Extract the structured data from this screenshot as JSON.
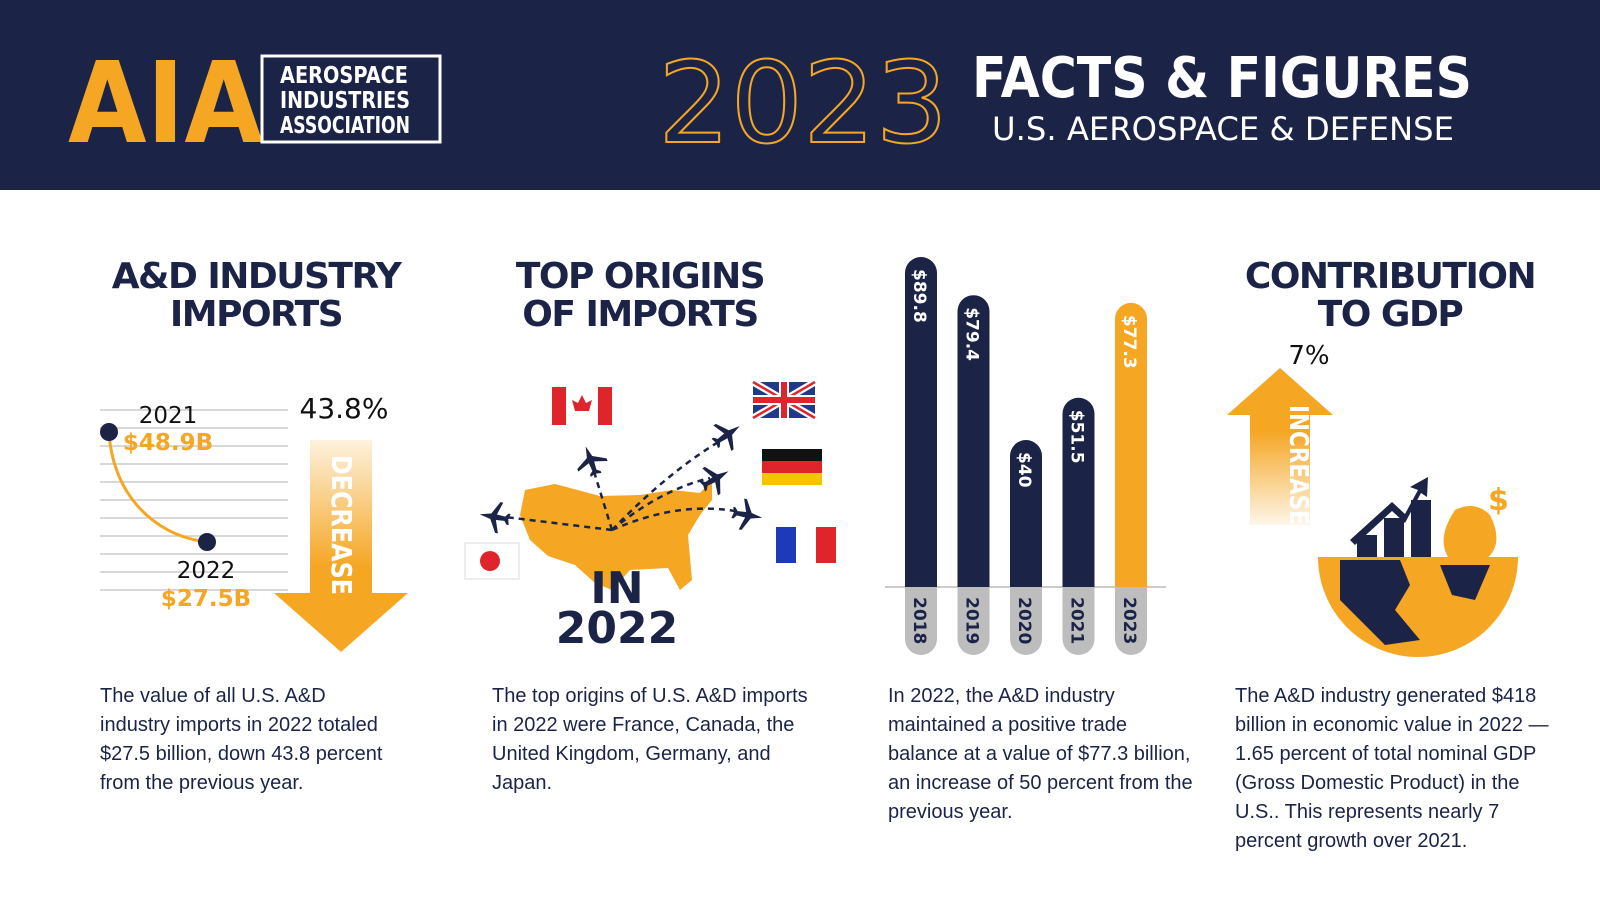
{
  "header": {
    "logo_letters": "AIA",
    "logo_lines": [
      "AEROSPACE",
      "INDUSTRIES",
      "ASSOCIATION"
    ],
    "year": "2023",
    "title": "FACTS & FIGURES",
    "subtitle": "U.S. AEROSPACE & DEFENSE"
  },
  "panels": [
    {
      "title_lines": [
        "A&D INDUSTRY",
        "IMPORTS"
      ],
      "points": [
        {
          "year": "2021",
          "value": "$48.9B"
        },
        {
          "year": "2022",
          "value": "$27.5B"
        }
      ],
      "change": "43.8%",
      "direction": "DECREASE",
      "text": "The value of all U.S. A&D industry imports in 2022 totaled $27.5 billion, down 43.8 percent from the previous year."
    },
    {
      "title_lines": [
        "TOP ORIGINS",
        "OF IMPORTS"
      ],
      "map_label_lines": [
        "IN",
        "2022"
      ],
      "text": "The top origins of U.S. A&D imports in 2022 were France, Canada, the United Kingdom, Germany, and Japan."
    },
    {
      "chart": {
        "type": "bar",
        "categories": [
          "2018",
          "2019",
          "2020",
          "2021",
          "2023"
        ],
        "values": [
          89.8,
          79.4,
          40,
          51.5,
          77.3
        ],
        "value_labels": [
          "$89.8",
          "$79.4",
          "$40",
          "$51.5",
          "$77.3"
        ],
        "colors": [
          "#1b2447",
          "#1b2447",
          "#1b2447",
          "#1b2447",
          "#f5a623"
        ]
      },
      "text": "In 2022, the A&D industry maintained a positive trade balance at a value of $77.3 billion, an increase of 50 percent from the previous year."
    },
    {
      "title_lines": [
        "CONTRIBUTION",
        "TO GDP"
      ],
      "change": "7%",
      "direction": "INCREASE",
      "text": "The A&D industry generated $418 billion in economic value in 2022 — 1.65 percent of total nominal GDP (Gross Domestic Product) in the U.S.. This represents nearly 7 percent growth over 2021."
    }
  ]
}
